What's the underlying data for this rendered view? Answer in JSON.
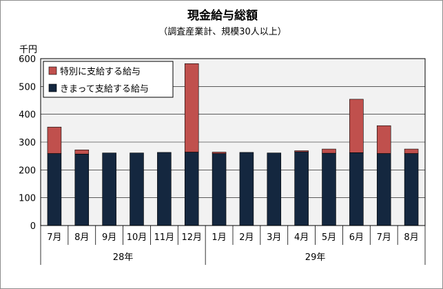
{
  "chart_data": {
    "type": "bar",
    "stacked": true,
    "title": "現金給与総額",
    "subtitle": "（調査産業計、規模30人以上）",
    "ylabel": "千円",
    "ylim": [
      0,
      600
    ],
    "yticks": [
      0,
      100,
      200,
      300,
      400,
      500,
      600
    ],
    "grid": true,
    "legend_position": "top-left",
    "categories": [
      "7月",
      "8月",
      "9月",
      "10月",
      "11月",
      "12月",
      "1月",
      "2月",
      "3月",
      "4月",
      "5月",
      "6月",
      "7月",
      "8月"
    ],
    "year_groups": [
      {
        "label": "28年",
        "count": 6
      },
      {
        "label": "29年",
        "count": 8
      }
    ],
    "series": [
      {
        "name": "きまって支給する給与",
        "color": "#14273f",
        "values": [
          259,
          257,
          261,
          261,
          263,
          264,
          259,
          263,
          261,
          265,
          260,
          262,
          259,
          259
        ]
      },
      {
        "name": "特別に支給する給与",
        "color": "#c0504d",
        "values": [
          95,
          15,
          0,
          0,
          0,
          318,
          5,
          0,
          0,
          4,
          15,
          192,
          100,
          16
        ]
      }
    ],
    "legend_order": [
      1,
      0
    ]
  }
}
